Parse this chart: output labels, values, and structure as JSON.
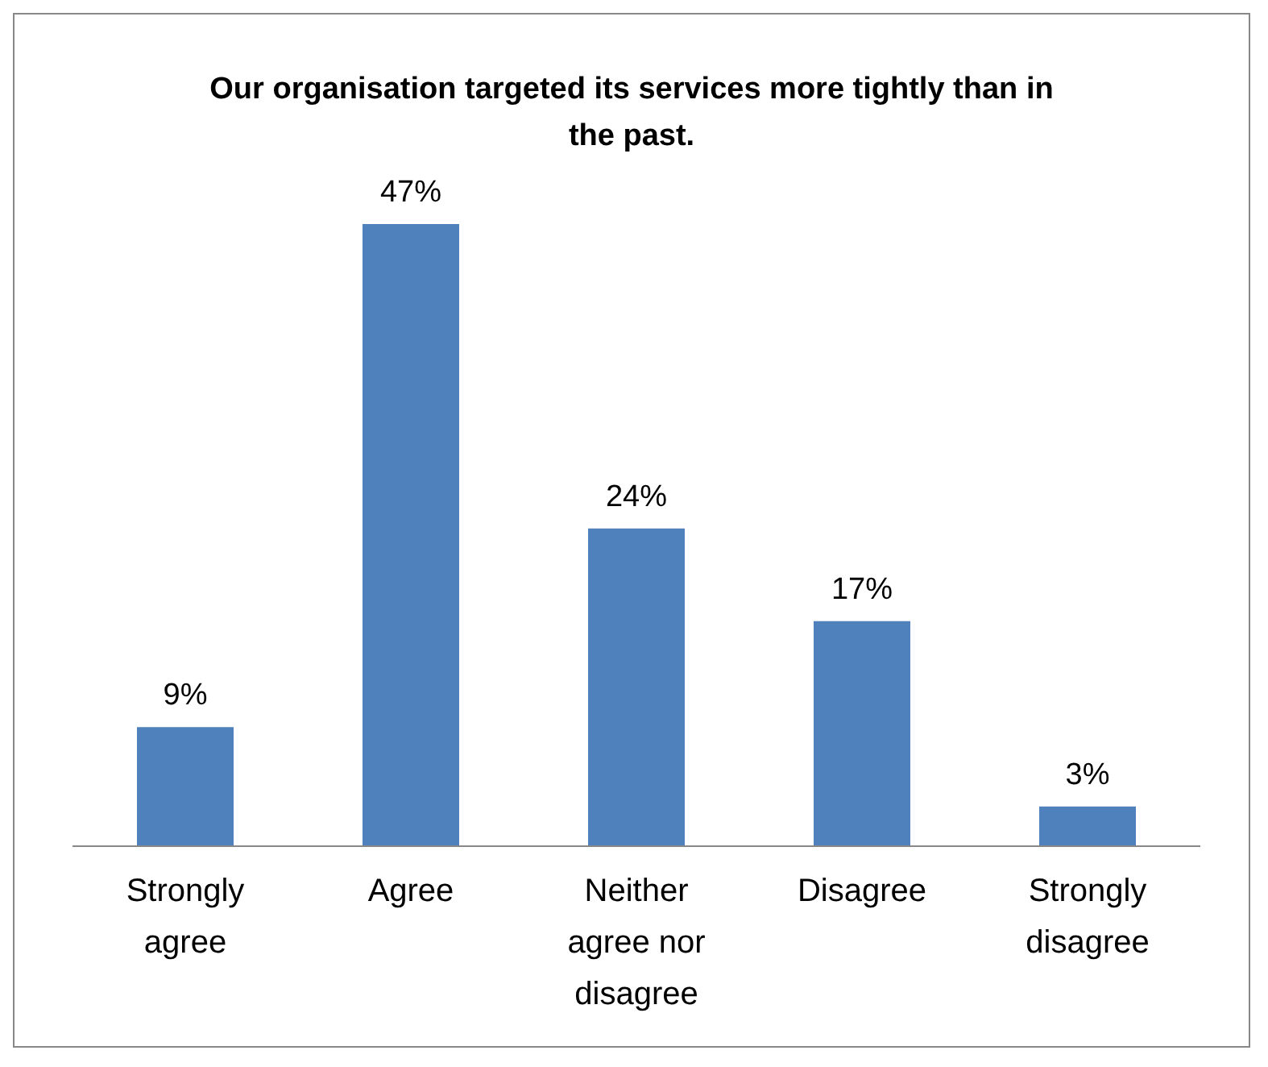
{
  "chart_data": {
    "type": "bar",
    "title": "Our organisation targeted its services more tightly than in the past.",
    "categories": [
      "Strongly agree",
      "Agree",
      "Neither agree nor disagree",
      "Disagree",
      "Strongly disagree"
    ],
    "values": [
      9,
      47,
      24,
      17,
      3
    ],
    "value_labels": [
      "9%",
      "47%",
      "24%",
      "17%",
      "3%"
    ],
    "color": "#4f81bd",
    "grid": false,
    "legend": false
  }
}
